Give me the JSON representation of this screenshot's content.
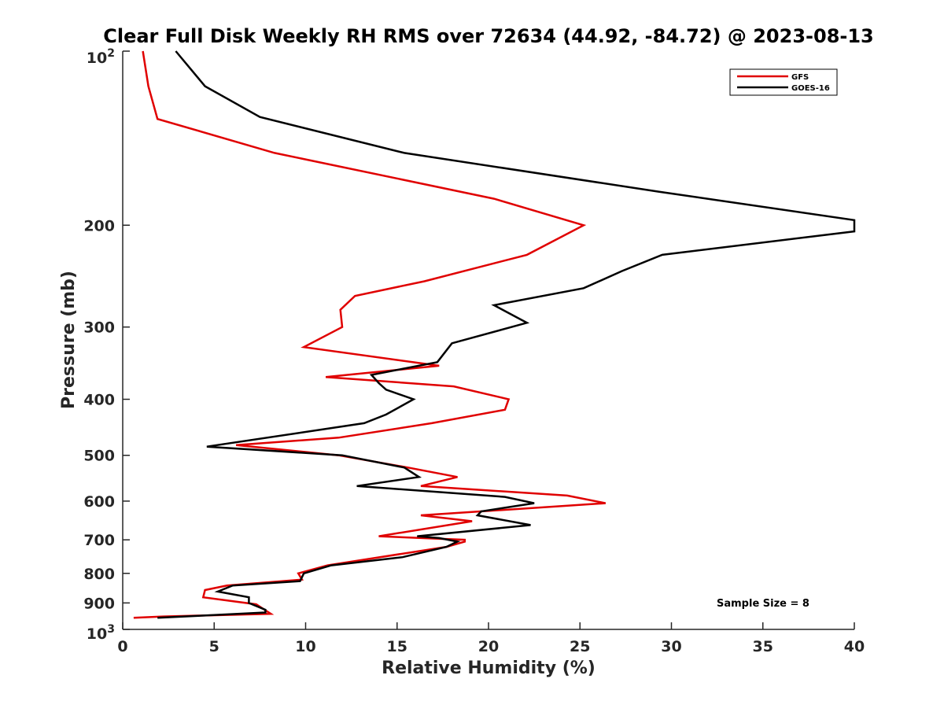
{
  "chart_data": {
    "type": "line",
    "title": "Clear Full Disk Weekly RH RMS over 72634 (44.92, -84.72) @ 2023-08-13",
    "xlabel": "Relative Humidity (%)",
    "ylabel": "Pressure (mb)",
    "xlim": [
      0,
      40
    ],
    "ylim": [
      100,
      1000
    ],
    "yscale": "log",
    "yreversed": true,
    "x_ticks": [
      0,
      5,
      10,
      15,
      20,
      25,
      30,
      35,
      40
    ],
    "x_tick_labels": [
      "0",
      "5",
      "10",
      "15",
      "20",
      "25",
      "30",
      "35",
      "40"
    ],
    "y_ticks": [
      200,
      300,
      400,
      500,
      600,
      700,
      800,
      900
    ],
    "y_tick_labels": [
      "200",
      "300",
      "400",
      "500",
      "600",
      "700",
      "800",
      "900"
    ],
    "y_min_label": {
      "base": "10",
      "exp": "2"
    },
    "y_max_label": {
      "base": "10",
      "exp": "3"
    },
    "legend_position": "top-right",
    "annotation": "Sample Size = 8",
    "series": [
      {
        "name": "GFS",
        "color": "#e00000",
        "points": [
          [
            1.1,
            100
          ],
          [
            1.4,
            115
          ],
          [
            1.9,
            131
          ],
          [
            8.3,
            150
          ],
          [
            20.3,
            180
          ],
          [
            25.2,
            200
          ],
          [
            22.1,
            225
          ],
          [
            16.5,
            250
          ],
          [
            12.7,
            265
          ],
          [
            11.9,
            280
          ],
          [
            12.0,
            300
          ],
          [
            9.9,
            325
          ],
          [
            17.3,
            350
          ],
          [
            11.1,
            366
          ],
          [
            18.1,
            380
          ],
          [
            21.1,
            400
          ],
          [
            20.9,
            417
          ],
          [
            16.9,
            440
          ],
          [
            11.8,
            466
          ],
          [
            6.2,
            480
          ],
          [
            11.8,
            500
          ],
          [
            15.6,
            525
          ],
          [
            18.3,
            545
          ],
          [
            16.3,
            565
          ],
          [
            24.3,
            587
          ],
          [
            26.4,
            605
          ],
          [
            16.3,
            635
          ],
          [
            19.1,
            650
          ],
          [
            14.0,
            690
          ],
          [
            18.7,
            700
          ],
          [
            18.7,
            705
          ],
          [
            17.7,
            720
          ],
          [
            11.2,
            775
          ],
          [
            9.6,
            800
          ],
          [
            9.8,
            820
          ],
          [
            5.7,
            840
          ],
          [
            4.5,
            855
          ],
          [
            4.4,
            880
          ],
          [
            7.3,
            905
          ],
          [
            8.1,
            940
          ],
          [
            2.2,
            950
          ],
          [
            0.6,
            955
          ]
        ]
      },
      {
        "name": "GOES-16",
        "color": "#000000",
        "points": [
          [
            2.9,
            100
          ],
          [
            4.5,
            115
          ],
          [
            7.5,
            130
          ],
          [
            15.4,
            150
          ],
          [
            29.3,
            175
          ],
          [
            40.0,
            196
          ],
          [
            40.0,
            205
          ],
          [
            29.5,
            225
          ],
          [
            27.3,
            240
          ],
          [
            25.2,
            257
          ],
          [
            20.3,
            275
          ],
          [
            22.1,
            295
          ],
          [
            18.0,
            320
          ],
          [
            17.2,
            345
          ],
          [
            13.6,
            363
          ],
          [
            14.0,
            375
          ],
          [
            14.4,
            385
          ],
          [
            15.9,
            400
          ],
          [
            14.4,
            425
          ],
          [
            13.2,
            440
          ],
          [
            4.6,
            483
          ],
          [
            12.0,
            500
          ],
          [
            15.4,
            525
          ],
          [
            16.2,
            545
          ],
          [
            12.8,
            565
          ],
          [
            20.9,
            590
          ],
          [
            22.5,
            605
          ],
          [
            19.6,
            625
          ],
          [
            19.4,
            635
          ],
          [
            22.3,
            660
          ],
          [
            16.1,
            690
          ],
          [
            17.3,
            695
          ],
          [
            18.3,
            705
          ],
          [
            17.7,
            720
          ],
          [
            15.3,
            750
          ],
          [
            11.4,
            775
          ],
          [
            9.9,
            800
          ],
          [
            9.7,
            825
          ],
          [
            6.0,
            840
          ],
          [
            5.2,
            860
          ],
          [
            6.9,
            880
          ],
          [
            6.9,
            900
          ],
          [
            7.8,
            925
          ],
          [
            7.8,
            935
          ],
          [
            1.9,
            955
          ]
        ]
      }
    ]
  }
}
